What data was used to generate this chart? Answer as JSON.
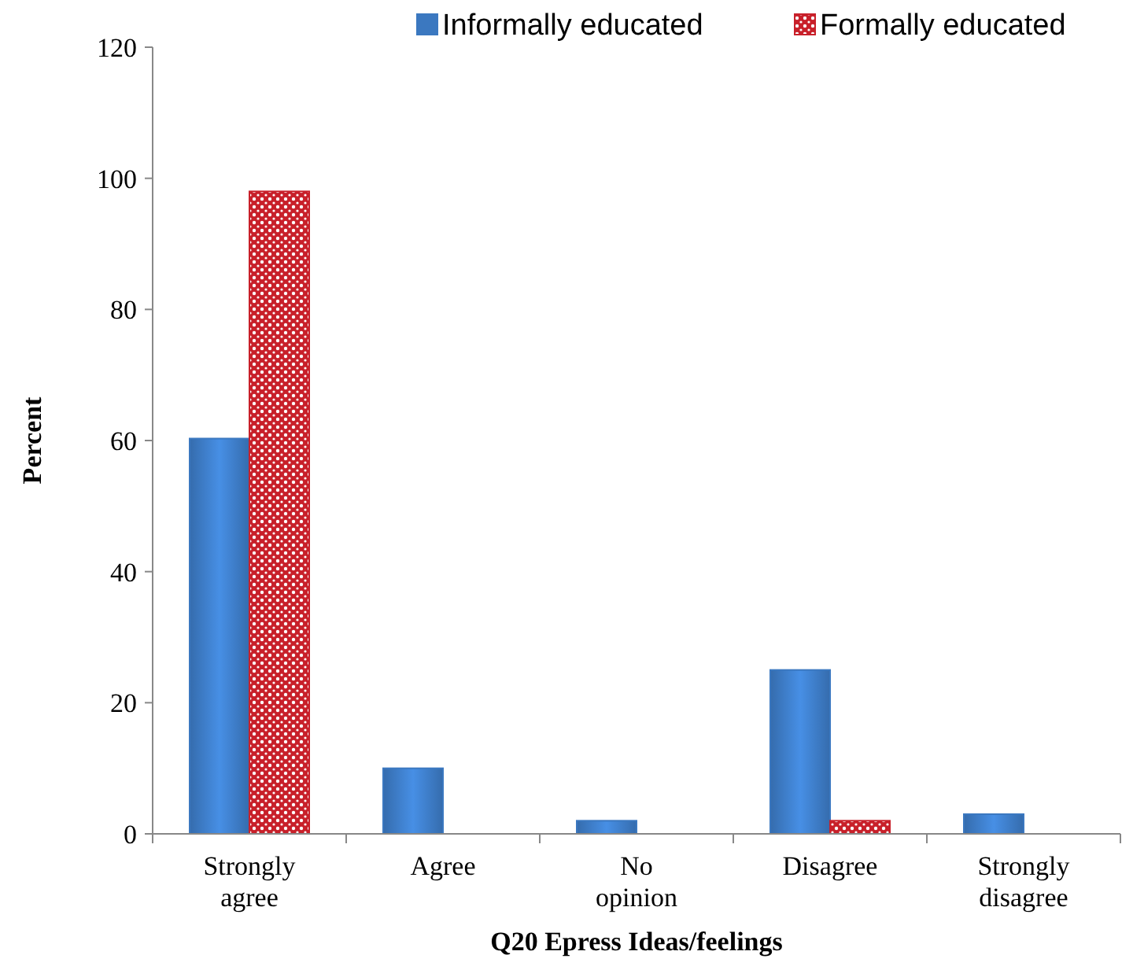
{
  "chart_data": {
    "type": "bar",
    "xlabel": "Q20  Epress Ideas/feelings",
    "ylabel": "Percent",
    "categories": [
      "Strongly agree",
      "Agree",
      "No opinion",
      "Disagree",
      "Strongly disagree"
    ],
    "series": [
      {
        "name": "Informally educated",
        "color": "#3b78c0",
        "values": [
          60.3,
          10,
          2,
          25,
          3
        ]
      },
      {
        "name": "Formally educated",
        "color": "#c8202a",
        "values": [
          98,
          0,
          0,
          2,
          0
        ]
      }
    ],
    "ylim": [
      0,
      120
    ],
    "yticks": [
      0,
      20,
      40,
      60,
      80,
      100,
      120
    ],
    "grid": false,
    "legend": "top"
  }
}
